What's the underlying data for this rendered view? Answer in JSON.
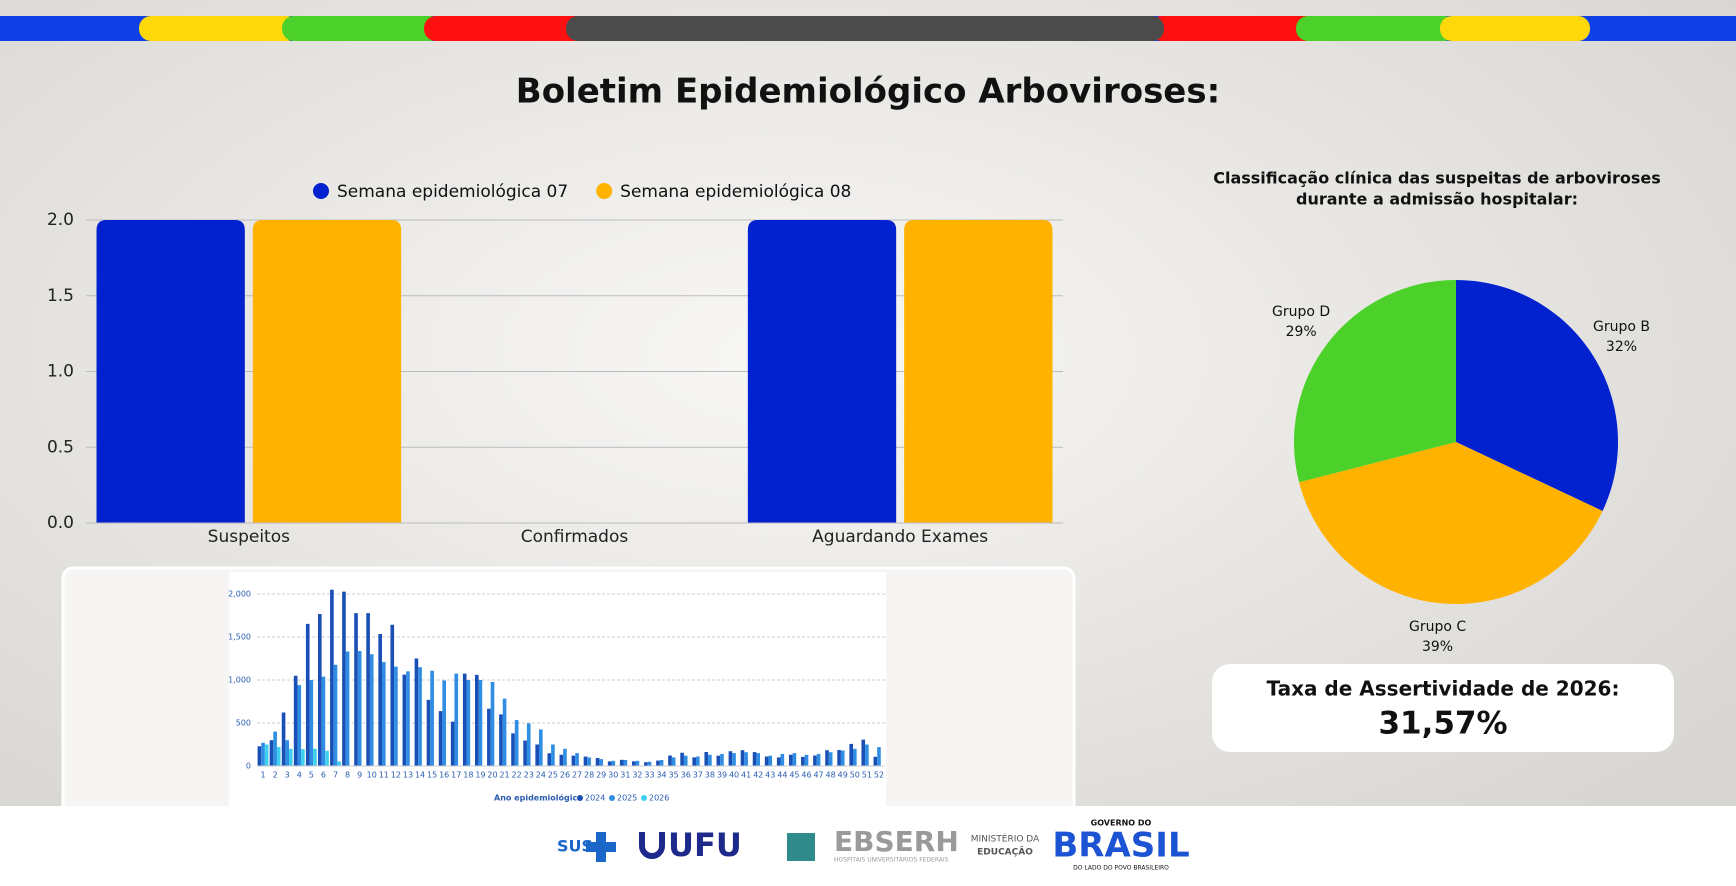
{
  "title": "Boletim Epidemiológico Arboviroses:",
  "bar_chart": {
    "type": "bar",
    "categories": [
      "Suspeitos",
      "Confirmados",
      "Aguardando Exames"
    ],
    "series": [
      {
        "name": "Semana epidemiológica 07",
        "color": "#0322cf",
        "values": [
          2,
          0,
          2
        ]
      },
      {
        "name": "Semana epidemiológica 08",
        "color": "#ffb300",
        "values": [
          2,
          0,
          2
        ]
      }
    ],
    "ylim": [
      0,
      2
    ],
    "yticks": [
      {
        "value": 0,
        "label": "0.0"
      },
      0.5,
      {
        "value": 1,
        "label": "1.0"
      },
      1.5,
      {
        "value": 2,
        "label": "2.0"
      }
    ],
    "grid": true,
    "legend": "top"
  },
  "weekly_chart": {
    "type": "bar",
    "x_label": "Ano epidemiológico",
    "categories": [
      "1",
      "2",
      "3",
      "4",
      "5",
      "6",
      "7",
      "8",
      "9",
      "10",
      "11",
      "12",
      "13",
      "14",
      "15",
      "16",
      "17",
      "18",
      "19",
      "20",
      "21",
      "22",
      "23",
      "24",
      "25",
      "26",
      "27",
      "28",
      "29",
      "30",
      "31",
      "32",
      "33",
      "34",
      "35",
      "36",
      "37",
      "38",
      "39",
      "40",
      "41",
      "42",
      "43",
      "44",
      "45",
      "46",
      "47",
      "48",
      "49",
      "50",
      "51",
      "52"
    ],
    "series": [
      {
        "name": "2024",
        "color": "#1a4fb5",
        "values": [
          229,
          300,
          622,
          1050,
          1652,
          1768,
          2049,
          2028,
          1778,
          1777,
          1535,
          1642,
          1062,
          1250,
          769,
          638,
          516,
          1074,
          1060,
          666,
          600,
          380,
          296,
          250,
          148,
          131,
          120,
          110,
          93,
          53,
          72,
          54,
          44,
          63,
          122,
          154,
          100,
          163,
          120,
          172,
          184,
          162,
          110,
          100,
          131,
          106,
          122,
          184,
          186,
          257,
          307,
          107
        ]
      },
      {
        "name": "2025",
        "color": "#2f8de4",
        "values": [
          270,
          400,
          300,
          940,
          1000,
          1039,
          1178,
          1332,
          1337,
          1299,
          1208,
          1155,
          1100,
          1150,
          1108,
          994,
          1074,
          1000,
          1000,
          977,
          784,
          534,
          496,
          425,
          250,
          200,
          150,
          100,
          80,
          60,
          70,
          60,
          50,
          70,
          100,
          120,
          110,
          130,
          140,
          150,
          160,
          150,
          120,
          140,
          150,
          130,
          140,
          160,
          180,
          200,
          250,
          220
        ]
      },
      {
        "name": "2026",
        "color": "#3fd0f0",
        "values": [
          250,
          220,
          200,
          197,
          201,
          177,
          53,
          null,
          null,
          null,
          null,
          null,
          null,
          null,
          null,
          null,
          null,
          null,
          null,
          null,
          null,
          null,
          null,
          null,
          null,
          null,
          null,
          null,
          null,
          null,
          null,
          null,
          null,
          null,
          null,
          null,
          null,
          null,
          null,
          null,
          null,
          null,
          null,
          null,
          null,
          null,
          null,
          null,
          null,
          null,
          null,
          null
        ]
      }
    ],
    "ylim": [
      0,
      2100
    ],
    "yticks": [
      0,
      500,
      {
        "value": 1000,
        "label": "1,000"
      },
      {
        "value": 1500,
        "label": "1,500"
      },
      {
        "value": 2000,
        "label": "2,000"
      }
    ],
    "grid": true
  },
  "pie_chart": {
    "type": "pie",
    "title": [
      "Classificação clínica das suspeitas de arboviroses",
      "durante a admissão hospitalar:"
    ],
    "categories": [
      "Grupo B",
      "Grupo C",
      "Grupo D"
    ],
    "values": [
      32,
      39,
      29
    ],
    "value_labels": [
      "32%",
      "39%",
      "29%"
    ],
    "colors": [
      "#0322cf",
      "#ffb300",
      "#4cd12a"
    ]
  },
  "kpi": {
    "label": "Taxa de Assertividade de 2026:",
    "value": "31,57%"
  },
  "footer": {
    "sus": "SUS",
    "ufu": "UFU",
    "ebserh": "EBSERH",
    "ebserh_sub": "HOSPITAIS UNIVERSITÁRIOS FEDERAIS",
    "mec": [
      "MINISTÉRIO DA",
      "EDUCAÇÃO"
    ],
    "gov_top": "GOVERNO DO",
    "gov": "BRASIL",
    "gov_sub": "DO LADO DO POVO BRASILEIRO"
  }
}
